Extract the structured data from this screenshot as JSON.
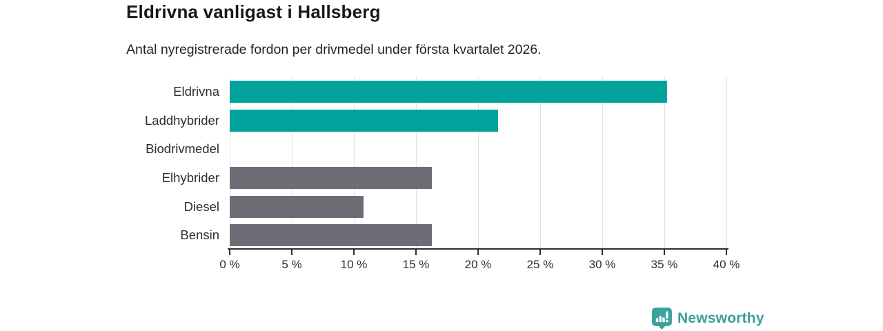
{
  "header": {
    "title": "Eldrivna vanligast i Hallsberg",
    "subtitle": "Antal nyregistrerade fordon per drivmedel under första kvartalet 2026."
  },
  "chart_data": {
    "type": "bar",
    "orientation": "horizontal",
    "title": "Eldrivna vanligast i Hallsberg",
    "subtitle": "Antal nyregistrerade fordon per drivmedel under första kvartalet 2026.",
    "categories": [
      "Eldrivna",
      "Laddhybrider",
      "Biodrivmedel",
      "Elhybrider",
      "Diesel",
      "Bensin"
    ],
    "values": [
      35.2,
      21.6,
      0,
      16.3,
      10.8,
      16.3
    ],
    "unit": "%",
    "bar_color_keys": [
      "teal",
      "teal",
      "teal",
      "gray",
      "gray",
      "gray"
    ],
    "palette": {
      "teal": "#00a29b",
      "gray": "#6d6d75"
    },
    "xlabel": "",
    "ylabel": "",
    "xlim": [
      0,
      40
    ],
    "tick_step": 5,
    "tick_labels": [
      "0 %",
      "5 %",
      "10 %",
      "15 %",
      "20 %",
      "25 %",
      "30 %",
      "35 %",
      "40 %"
    ],
    "grid": true,
    "legend": "none"
  },
  "logo": {
    "text": "Newsworthy",
    "text_color": "#3f9e98",
    "icon_color": "#3aa29c",
    "icon": "newsworthy-chart-bubble-icon"
  }
}
